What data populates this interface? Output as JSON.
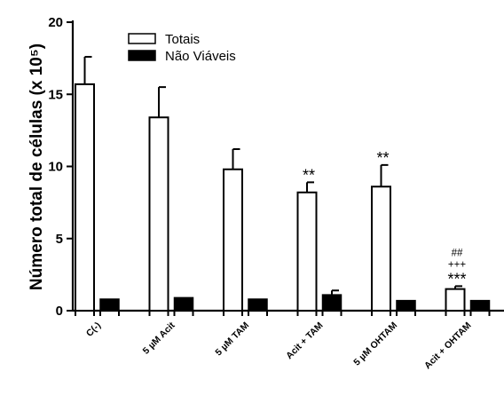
{
  "chart_data": {
    "type": "bar",
    "ylabel": "Número total de células (x 10⁵)",
    "ylim": [
      0,
      20
    ],
    "yticks": [
      0,
      5,
      10,
      15,
      20
    ],
    "categories": [
      "C(-)",
      "5 µM Acit",
      "5 µM TAM",
      "Acit + TAM",
      "5 µM OHTAM",
      "Acit + OHTAM"
    ],
    "legend_position": "top",
    "series": [
      {
        "name": "Totais",
        "fill": "#ffffff",
        "values": [
          15.7,
          13.4,
          9.8,
          8.2,
          8.6,
          1.5
        ],
        "errors": [
          1.9,
          2.1,
          1.4,
          0.7,
          1.5,
          0.2
        ]
      },
      {
        "name": "Não Viáveis",
        "fill": "#000000",
        "values": [
          0.8,
          0.9,
          0.8,
          1.1,
          0.7,
          0.7
        ],
        "errors": [
          0.05,
          0.05,
          0.05,
          0.3,
          0.05,
          0.05
        ]
      }
    ],
    "annotations": [
      {
        "category_index": 3,
        "lines": [
          "**"
        ]
      },
      {
        "category_index": 4,
        "lines": [
          "**"
        ]
      },
      {
        "category_index": 5,
        "lines": [
          "##",
          "+++",
          "***"
        ]
      }
    ]
  }
}
